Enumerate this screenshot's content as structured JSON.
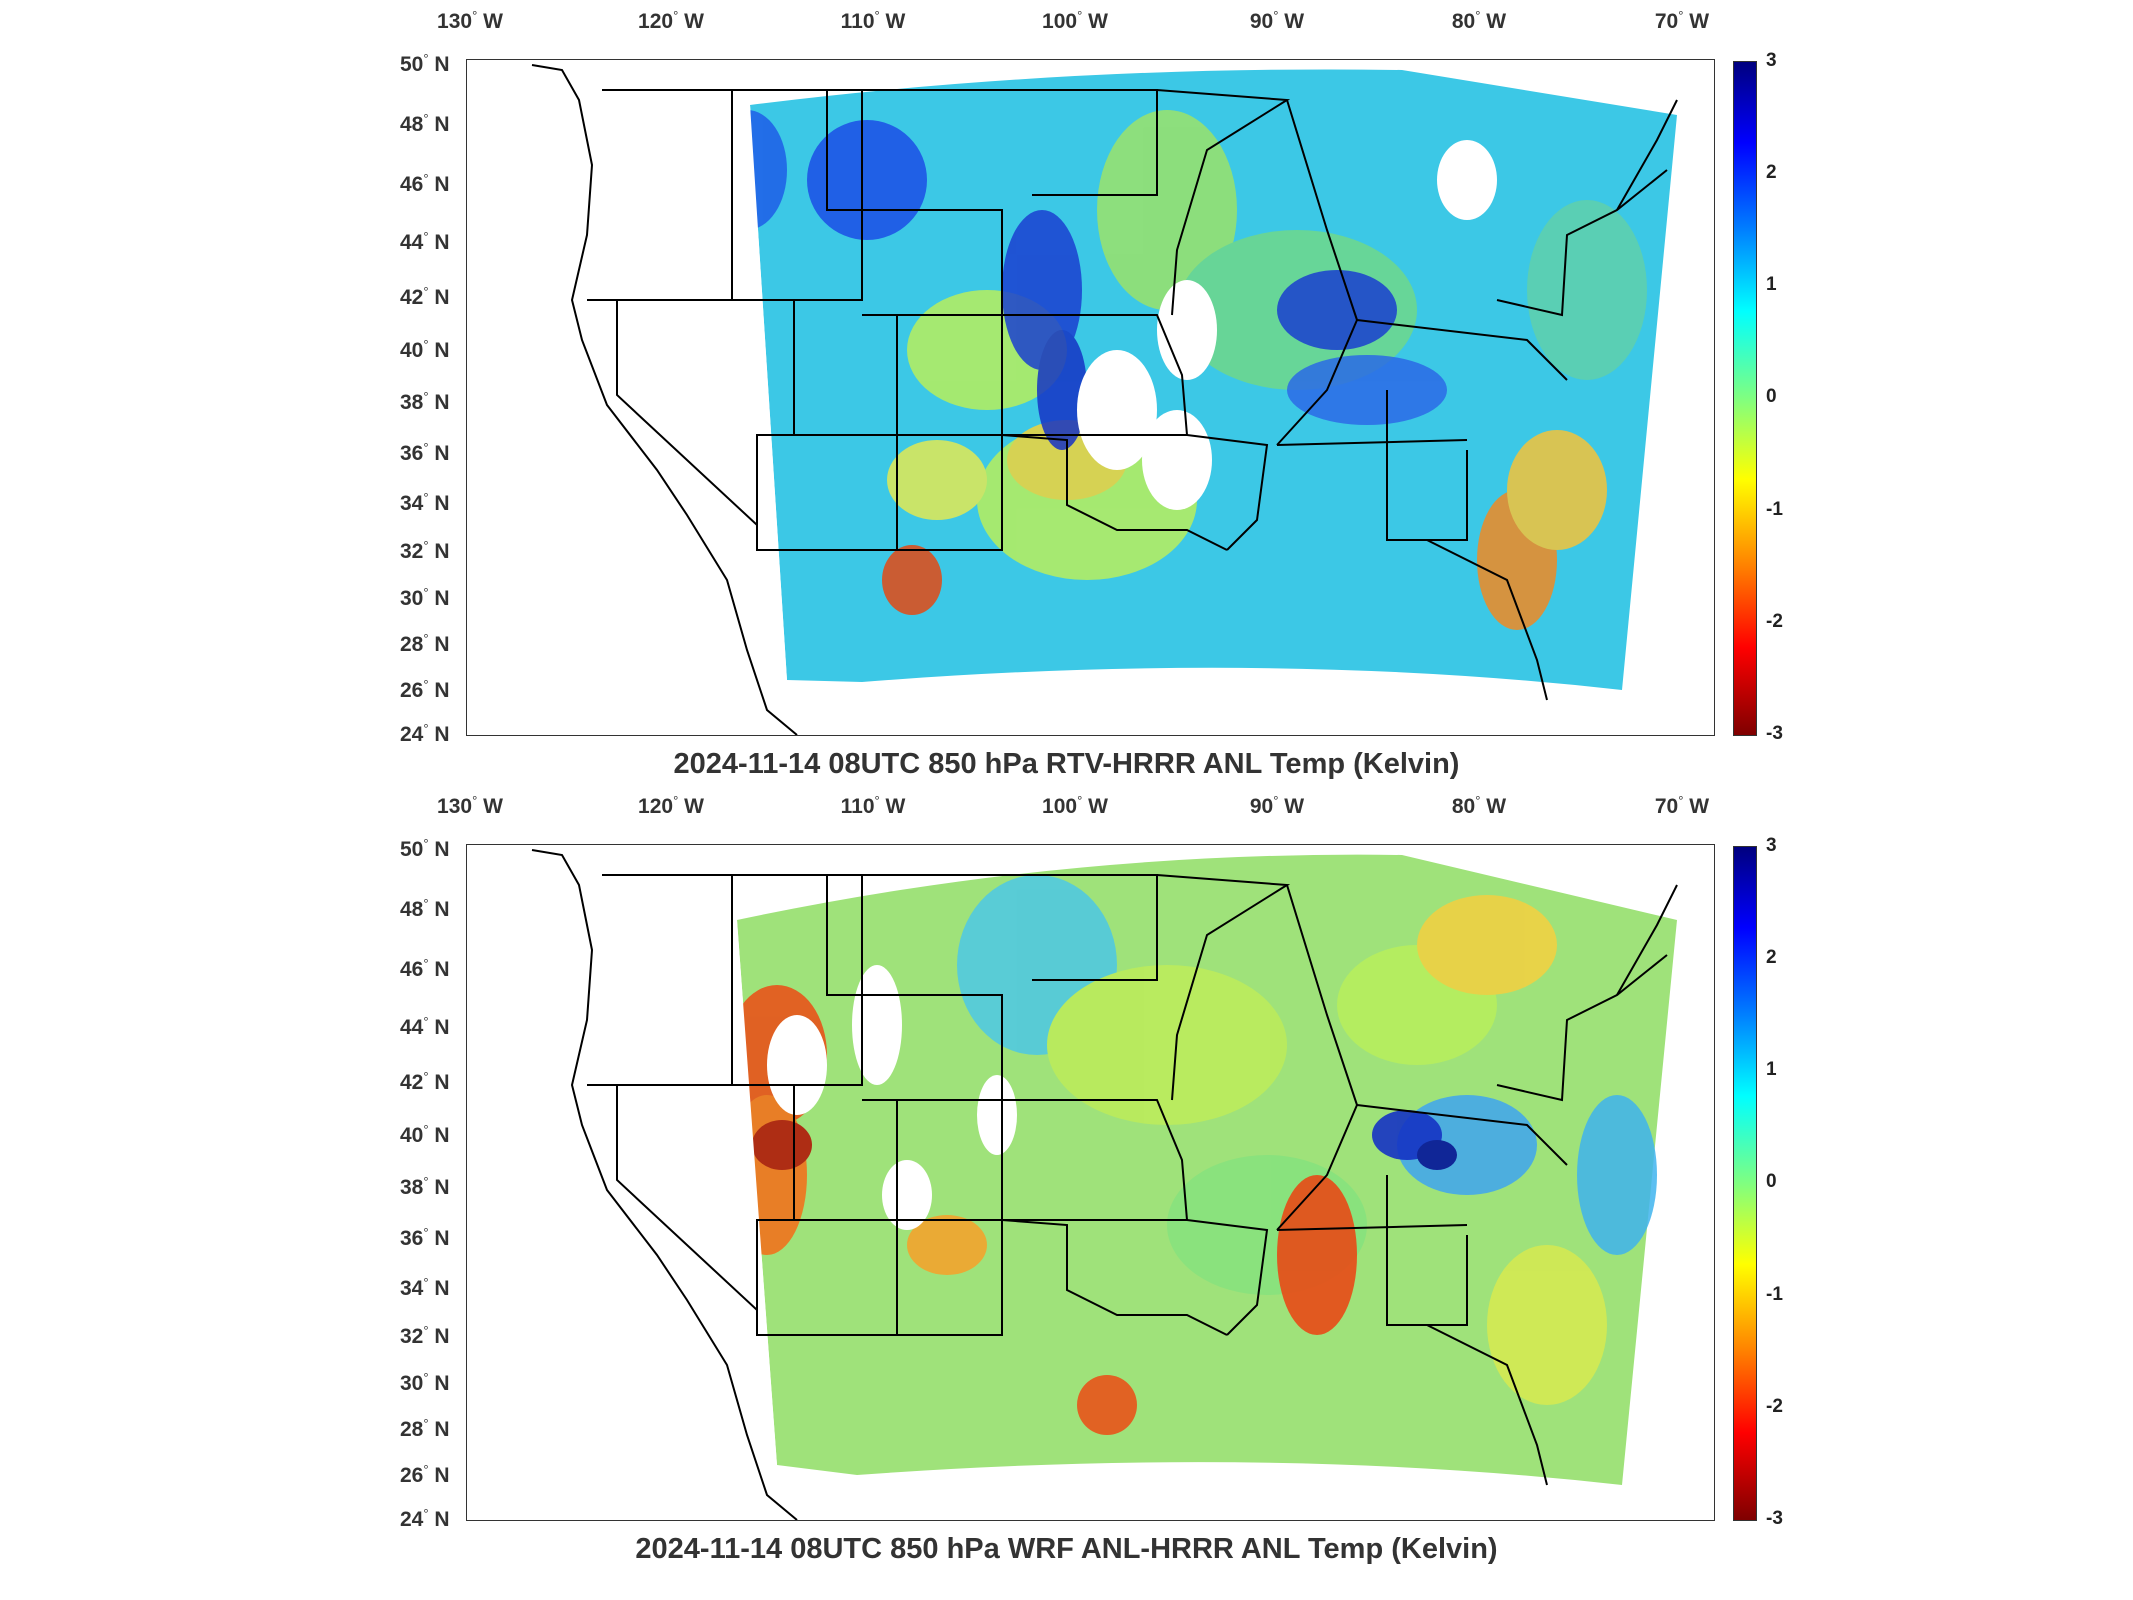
{
  "colorbar": {
    "ticks": [
      "3",
      "2",
      "1",
      "0",
      "-1",
      "-2",
      "-3"
    ],
    "colors": [
      "#00007f",
      "#0000ff",
      "#0080ff",
      "#00ffff",
      "#80ff80",
      "#ffff00",
      "#ff8000",
      "#ff0000",
      "#7f0000"
    ]
  },
  "axes": {
    "lon_labels": [
      "130",
      "120",
      "110",
      "100",
      "90",
      "80",
      "70"
    ],
    "lon_suffix": "W",
    "lat_labels": [
      "50",
      "48",
      "46",
      "44",
      "42",
      "40",
      "38",
      "36",
      "34",
      "32",
      "30",
      "28",
      "26",
      "24"
    ],
    "lat_suffix": "N",
    "degree": "°"
  },
  "panels": [
    {
      "title": "2024-11-14 08UTC 850 hPa RTV-HRRR ANL Temp (Kelvin)"
    },
    {
      "title": "2024-11-14 08UTC 850 hPa WRF ANL-HRRR ANL Temp (Kelvin)"
    }
  ]
}
